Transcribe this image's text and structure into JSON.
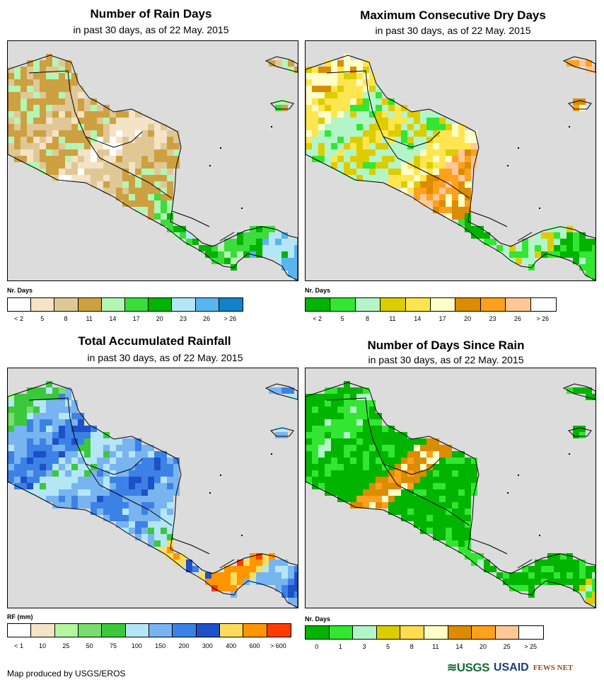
{
  "colors": {
    "land_gray": "#dcdcdc",
    "border": "#000000"
  },
  "panels": [
    {
      "id": "rain_days",
      "title": "Number of Rain Days",
      "subtitle": "in past 30 days, as of 22 May. 2015",
      "legend_label": "Nr. Days",
      "legend_colors": [
        "#ffffff",
        "#f5e3c6",
        "#e0c896",
        "#cda042",
        "#b4f5b4",
        "#3cdc3c",
        "#00b400",
        "#b4e6f5",
        "#5ab4ee",
        "#1482c8"
      ],
      "legend_ticks": [
        "< 2",
        "5",
        "8",
        "11",
        "14",
        "17",
        "20",
        "23",
        "26",
        "> 26"
      ],
      "dominant": [
        2,
        3,
        3,
        2,
        3,
        1,
        2,
        3,
        4,
        5,
        6,
        5,
        7,
        8
      ]
    },
    {
      "id": "max_dry_days",
      "title": "Maximum Consecutive Dry Days",
      "subtitle": "in past 30 days, as of 22 May. 2015",
      "legend_label": "Nr. Days",
      "legend_colors": [
        "#00b400",
        "#32e632",
        "#b4f5c8",
        "#dccd00",
        "#ffe650",
        "#ffffc8",
        "#dc8c00",
        "#ffa01e",
        "#ffc896",
        "#ffffff"
      ],
      "legend_ticks": [
        "< 2",
        "5",
        "8",
        "11",
        "14",
        "17",
        "20",
        "23",
        "26",
        "> 26"
      ],
      "dominant": [
        4,
        5,
        4,
        2,
        3,
        2,
        4,
        7,
        6,
        0,
        1,
        2,
        0,
        1
      ]
    },
    {
      "id": "total_rainfall",
      "title": "Total Accumulated Rainfall",
      "subtitle": "in past 30 days, as of 22 May. 2015",
      "legend_label": "RF (mm)",
      "legend_colors": [
        "#ffffff",
        "#f5e3c6",
        "#b4f5a0",
        "#78dc6e",
        "#3cc83c",
        "#b4e6f5",
        "#78b4f0",
        "#3c82e6",
        "#1e50c8",
        "#ffdc5a",
        "#ff9600",
        "#ff3c00"
      ],
      "legend_ticks": [
        "< 1",
        "10",
        "25",
        "50",
        "75",
        "100",
        "150",
        "200",
        "300",
        "400",
        "600",
        "> 600"
      ],
      "dominant": [
        3,
        4,
        6,
        7,
        5,
        6,
        7,
        6,
        5,
        9,
        8,
        10,
        6,
        7
      ]
    },
    {
      "id": "days_since_rain",
      "title": "Number of Days Since Rain",
      "subtitle": "in past 30 days, as of 22 May. 2015",
      "legend_label": "Nr. Days",
      "legend_colors": [
        "#00b400",
        "#32e632",
        "#b4f5c8",
        "#dccd00",
        "#ffdc50",
        "#ffffc8",
        "#dc8c00",
        "#ffa01e",
        "#ffc896",
        "#ffffff"
      ],
      "legend_ticks": [
        "0",
        "1",
        "3",
        "5",
        "8",
        "11",
        "14",
        "20",
        "25",
        "> 25"
      ],
      "dominant": [
        0,
        0,
        1,
        0,
        0,
        6,
        0,
        0,
        0,
        1,
        0,
        0,
        0,
        2
      ]
    }
  ],
  "footer": {
    "credit": "Map produced by USGS/EROS",
    "logo_usgs": "≋USGS",
    "logo_usaid": "USAID",
    "logo_fews": "FEWS NET"
  }
}
